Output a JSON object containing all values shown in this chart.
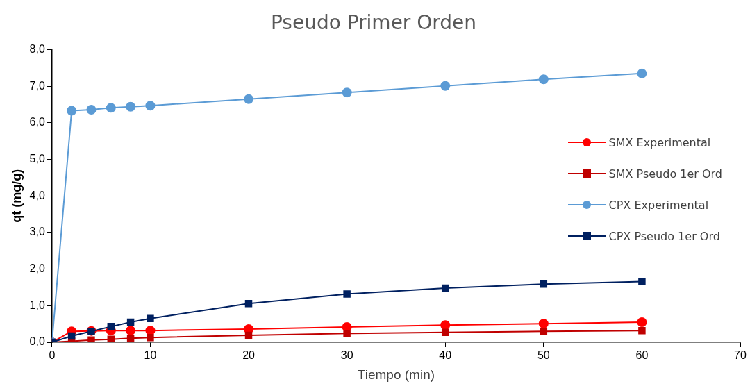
{
  "chart_data": {
    "type": "line",
    "title": "Pseudo Primer Orden",
    "xlabel": "Tiempo (min)",
    "ylabel": "qt (mg/g)",
    "x": [
      0,
      2,
      4,
      6,
      8,
      10,
      20,
      30,
      40,
      50,
      60
    ],
    "series": [
      {
        "name": "SMX Experimental",
        "color": "#ff0000",
        "marker": "circle",
        "values": [
          0,
          0.3,
          0.31,
          0.32,
          0.32,
          0.32,
          0.36,
          0.42,
          0.47,
          0.51,
          0.55
        ]
      },
      {
        "name": "SMX Pseudo 1er Ord",
        "color": "#c00000",
        "marker": "square",
        "values": [
          0,
          0.03,
          0.06,
          0.08,
          0.11,
          0.13,
          0.19,
          0.24,
          0.27,
          0.3,
          0.32
        ]
      },
      {
        "name": "CPX Experimental",
        "color": "#5b9bd5",
        "marker": "circle",
        "values": [
          0,
          6.33,
          6.36,
          6.41,
          6.44,
          6.47,
          6.65,
          6.83,
          7.01,
          7.19,
          7.35
        ]
      },
      {
        "name": "CPX Pseudo 1er Ord",
        "color": "#002060",
        "marker": "square",
        "values": [
          0,
          0.17,
          0.3,
          0.43,
          0.55,
          0.65,
          1.06,
          1.32,
          1.48,
          1.59,
          1.66
        ]
      }
    ],
    "xlim": [
      0,
      70
    ],
    "xticks": [
      0,
      10,
      20,
      30,
      40,
      50,
      60,
      70
    ],
    "ylim": [
      0,
      8
    ],
    "yticks": [
      {
        "value": 0,
        "label": "0,0"
      },
      {
        "value": 1,
        "label": "1,0"
      },
      {
        "value": 2,
        "label": "2,0"
      },
      {
        "value": 3,
        "label": "3,0"
      },
      {
        "value": 4,
        "label": "4,0"
      },
      {
        "value": 5,
        "label": "5,0"
      },
      {
        "value": 6,
        "label": "6,0"
      },
      {
        "value": 7,
        "label": "7,0"
      },
      {
        "value": 8,
        "label": "8,0"
      }
    ],
    "grid": false,
    "legend": "right"
  }
}
